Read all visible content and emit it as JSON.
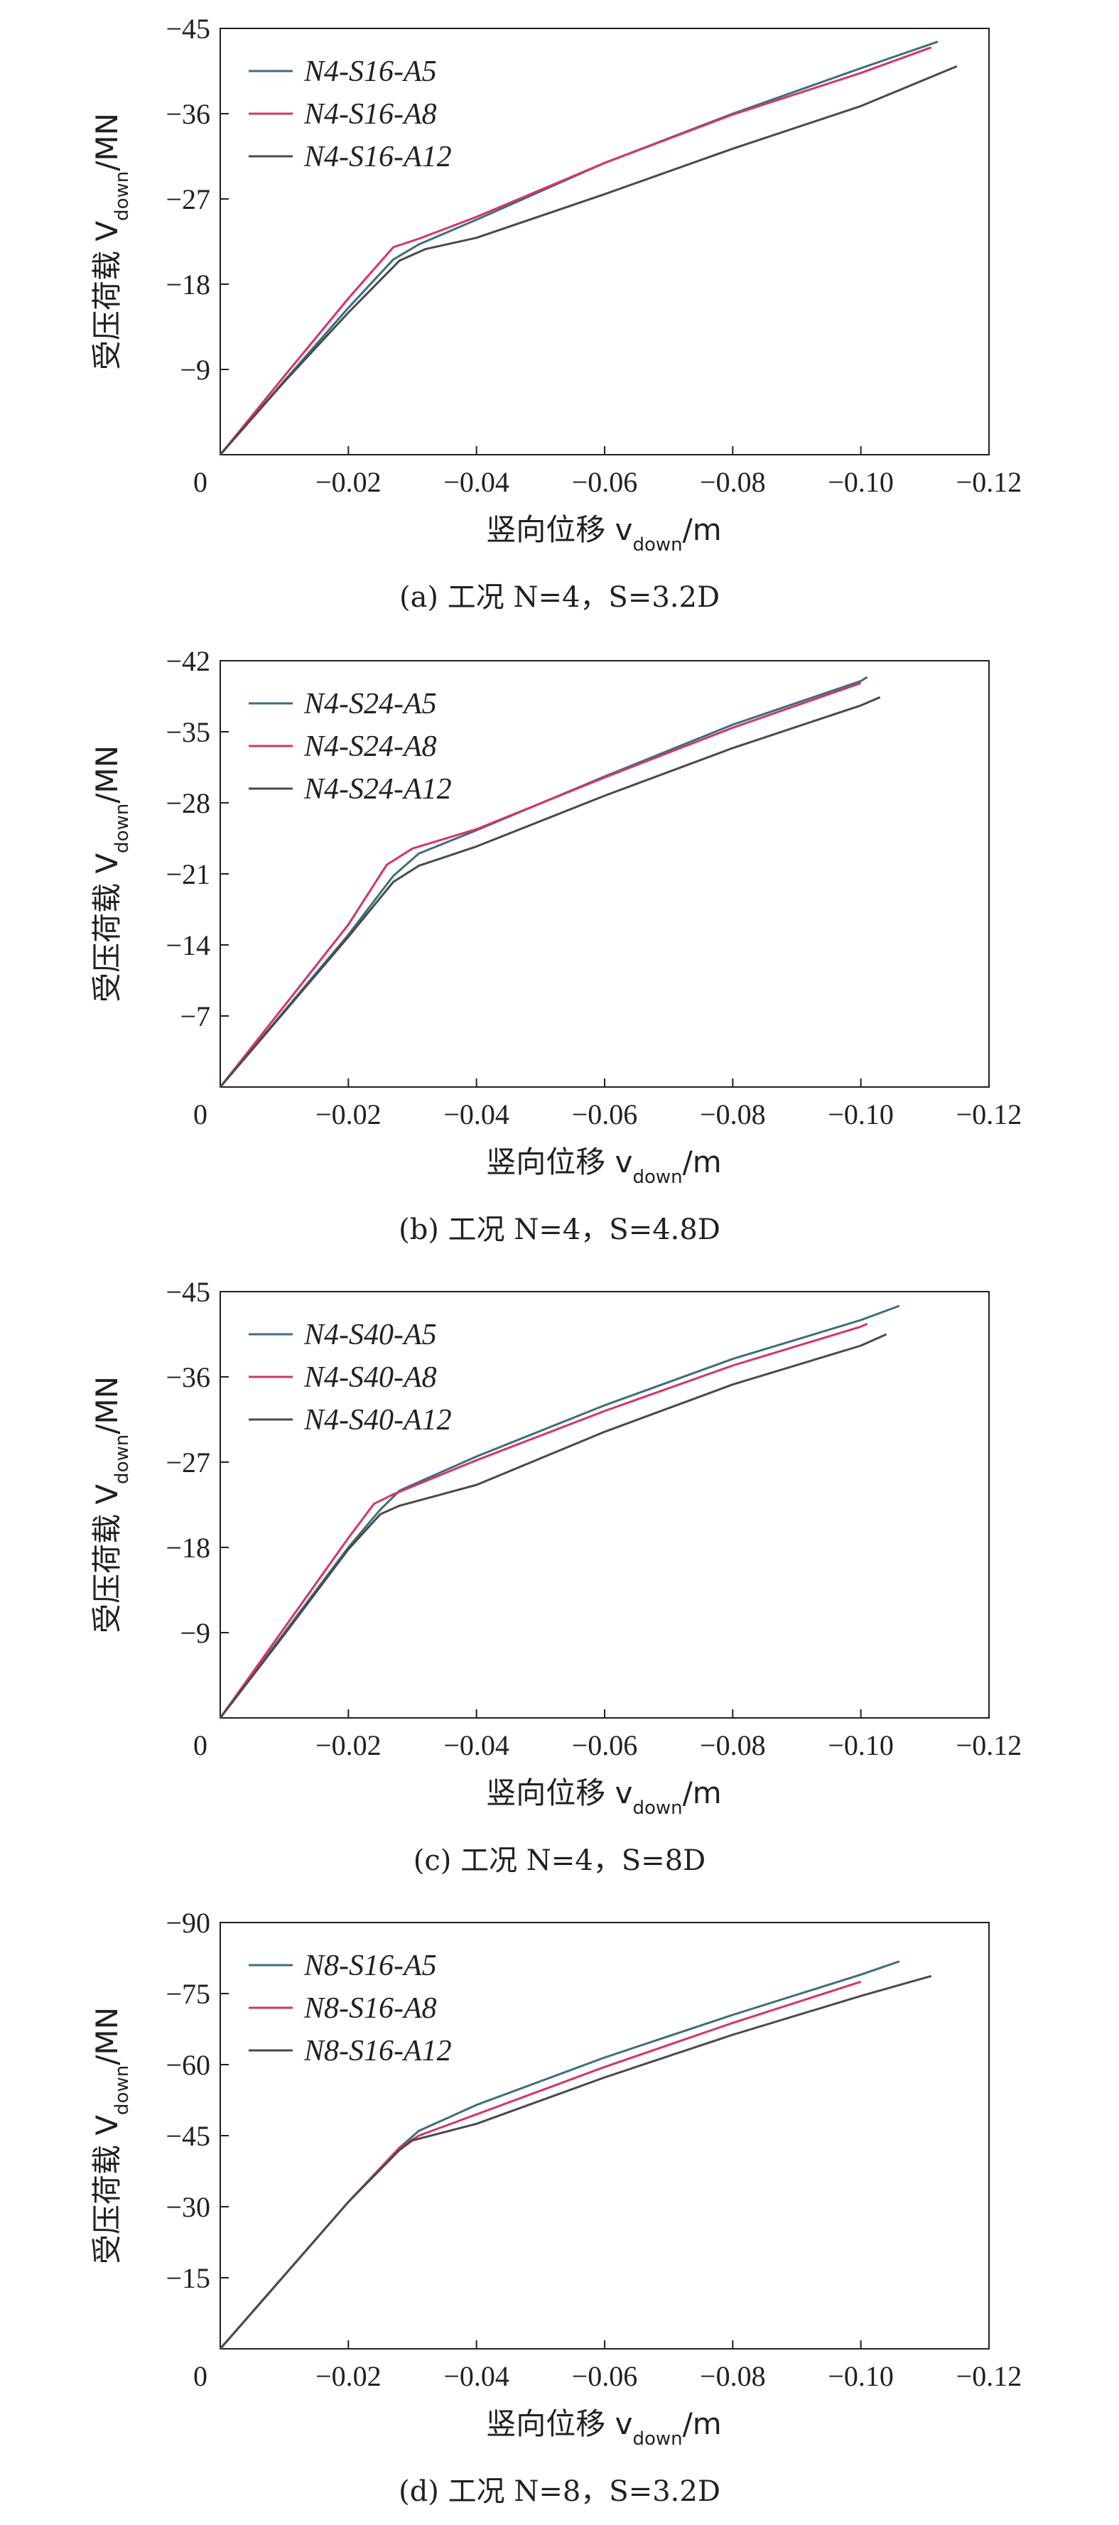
{
  "chart_data": [
    {
      "type": "line",
      "caption": "(a) 工况 N=4，S=3.2D",
      "ylabel": "受压荷载 Vdown/MN",
      "xlabel": "竖向位移 vdown/m",
      "xlim": [
        0,
        -0.12
      ],
      "ylim": [
        0,
        -45
      ],
      "xticks": [
        0,
        -0.02,
        -0.04,
        -0.06,
        -0.08,
        -0.1,
        -0.12
      ],
      "xtick_labels": [
        "0",
        "−0.02",
        "−0.04",
        "−0.06",
        "−0.08",
        "−0.10",
        "−0.12"
      ],
      "yticks": [
        -9,
        -18,
        -27,
        -36,
        -45
      ],
      "ytick_labels": [
        "−9",
        "−18",
        "−27",
        "−36",
        "−45"
      ],
      "legend_position": "top-left",
      "series": [
        {
          "name": "N4-S16-A5",
          "color": "#3b6f7f",
          "x": [
            0,
            -0.01,
            -0.02,
            -0.027,
            -0.031,
            -0.04,
            -0.06,
            -0.08,
            -0.1,
            -0.112
          ],
          "y": [
            0,
            -7.8,
            -15.5,
            -20.6,
            -22.2,
            -24.8,
            -30.8,
            -36.0,
            -40.8,
            -43.6
          ]
        },
        {
          "name": "N4-S16-A8",
          "color": "#d6336c",
          "x": [
            0,
            -0.01,
            -0.02,
            -0.027,
            -0.031,
            -0.04,
            -0.06,
            -0.08,
            -0.1,
            -0.111
          ],
          "y": [
            0,
            -8.3,
            -16.5,
            -21.9,
            -22.8,
            -25.1,
            -30.8,
            -35.9,
            -40.3,
            -43.0
          ]
        },
        {
          "name": "N4-S16-A12",
          "color": "#4a4a4a",
          "x": [
            0,
            -0.01,
            -0.02,
            -0.028,
            -0.032,
            -0.04,
            -0.06,
            -0.08,
            -0.1,
            -0.115
          ],
          "y": [
            0,
            -7.7,
            -15.0,
            -20.5,
            -21.7,
            -22.9,
            -27.5,
            -32.3,
            -36.8,
            -41.0
          ]
        }
      ]
    },
    {
      "type": "line",
      "caption": "(b) 工况 N=4，S=4.8D",
      "ylabel": "受压荷载 Vdown/MN",
      "xlabel": "竖向位移 vdown/m",
      "xlim": [
        0,
        -0.12
      ],
      "ylim": [
        0,
        -42
      ],
      "xticks": [
        0,
        -0.02,
        -0.04,
        -0.06,
        -0.08,
        -0.1,
        -0.12
      ],
      "xtick_labels": [
        "0",
        "−0.02",
        "−0.04",
        "−0.06",
        "−0.08",
        "−0.10",
        "−0.12"
      ],
      "yticks": [
        -7,
        -14,
        -21,
        -28,
        -35,
        -42
      ],
      "ytick_labels": [
        "−7",
        "−14",
        "−21",
        "−28",
        "−35",
        "−42"
      ],
      "legend_position": "top-left",
      "series": [
        {
          "name": "N4-S24-A5",
          "color": "#3b6f7f",
          "x": [
            0,
            -0.01,
            -0.02,
            -0.027,
            -0.031,
            -0.04,
            -0.06,
            -0.08,
            -0.1,
            -0.101
          ],
          "y": [
            0,
            -7.5,
            -15.0,
            -20.8,
            -23.0,
            -25.3,
            -30.6,
            -35.7,
            -40.0,
            -40.4
          ]
        },
        {
          "name": "N4-S24-A8",
          "color": "#d6336c",
          "x": [
            0,
            -0.01,
            -0.02,
            -0.026,
            -0.03,
            -0.04,
            -0.06,
            -0.08,
            -0.1
          ],
          "y": [
            0,
            -8.0,
            -16.0,
            -21.9,
            -23.5,
            -25.4,
            -30.5,
            -35.4,
            -39.8
          ]
        },
        {
          "name": "N4-S24-A12",
          "color": "#4a4a4a",
          "x": [
            0,
            -0.01,
            -0.02,
            -0.027,
            -0.031,
            -0.04,
            -0.06,
            -0.08,
            -0.1,
            -0.103
          ],
          "y": [
            0,
            -7.4,
            -14.8,
            -20.2,
            -21.8,
            -23.7,
            -28.7,
            -33.4,
            -37.6,
            -38.4
          ]
        }
      ]
    },
    {
      "type": "line",
      "caption": "(c) 工况 N=4，S=8D",
      "ylabel": "受压荷载 Vdown/MN",
      "xlabel": "竖向位移 vdown/m",
      "xlim": [
        0,
        -0.12
      ],
      "ylim": [
        0,
        -45
      ],
      "xticks": [
        0,
        -0.02,
        -0.04,
        -0.06,
        -0.08,
        -0.1,
        -0.12
      ],
      "xtick_labels": [
        "0",
        "−0.02",
        "−0.04",
        "−0.06",
        "−0.08",
        "−0.10",
        "−0.12"
      ],
      "yticks": [
        -9,
        -18,
        -27,
        -36,
        -45
      ],
      "ytick_labels": [
        "−9",
        "−18",
        "−27",
        "−36",
        "−45"
      ],
      "legend_position": "top-left",
      "series": [
        {
          "name": "N4-S40-A5",
          "color": "#3b6f7f",
          "x": [
            0,
            -0.01,
            -0.02,
            -0.025,
            -0.028,
            -0.04,
            -0.06,
            -0.08,
            -0.1,
            -0.106
          ],
          "y": [
            0,
            -9.0,
            -18.0,
            -22.0,
            -24.0,
            -27.6,
            -33.0,
            -37.9,
            -42.0,
            -43.5
          ]
        },
        {
          "name": "N4-S40-A8",
          "color": "#d6336c",
          "x": [
            0,
            -0.01,
            -0.02,
            -0.024,
            -0.027,
            -0.04,
            -0.06,
            -0.08,
            -0.1,
            -0.101
          ],
          "y": [
            0,
            -9.5,
            -19.0,
            -22.6,
            -23.6,
            -27.2,
            -32.4,
            -37.2,
            -41.3,
            -41.6
          ]
        },
        {
          "name": "N4-S40-A12",
          "color": "#4a4a4a",
          "x": [
            0,
            -0.01,
            -0.02,
            -0.025,
            -0.028,
            -0.04,
            -0.06,
            -0.08,
            -0.1,
            -0.104
          ],
          "y": [
            0,
            -8.8,
            -17.8,
            -21.5,
            -22.4,
            -24.6,
            -30.2,
            -35.2,
            -39.3,
            -40.5
          ]
        }
      ]
    },
    {
      "type": "line",
      "caption": "(d) 工况 N=8，S=3.2D",
      "ylabel": "受压荷载 Vdown/MN",
      "xlabel": "竖向位移 vdown/m",
      "xlim": [
        0,
        -0.12
      ],
      "ylim": [
        0,
        -90
      ],
      "xticks": [
        0,
        -0.02,
        -0.04,
        -0.06,
        -0.08,
        -0.1,
        -0.12
      ],
      "xtick_labels": [
        "0",
        "−0.02",
        "−0.04",
        "−0.06",
        "−0.08",
        "−0.10",
        "−0.12"
      ],
      "yticks": [
        -15,
        -30,
        -45,
        -60,
        -75,
        -90
      ],
      "ytick_labels": [
        "−15",
        "−30",
        "−45",
        "−60",
        "−75",
        "−90"
      ],
      "legend_position": "top-left",
      "series": [
        {
          "name": "N8-S16-A5",
          "color": "#3b6f7f",
          "x": [
            0,
            -0.01,
            -0.02,
            -0.028,
            -0.031,
            -0.04,
            -0.06,
            -0.08,
            -0.1,
            -0.106
          ],
          "y": [
            0,
            -15.5,
            -31.0,
            -42.5,
            -46.0,
            -51.5,
            -61.5,
            -70.5,
            -79.0,
            -81.8
          ]
        },
        {
          "name": "N8-S16-A8",
          "color": "#d6336c",
          "x": [
            0,
            -0.01,
            -0.02,
            -0.028,
            -0.031,
            -0.04,
            -0.06,
            -0.08,
            -0.1
          ],
          "y": [
            0,
            -15.5,
            -31.0,
            -42.5,
            -45.0,
            -49.5,
            -59.5,
            -68.8,
            -77.5
          ]
        },
        {
          "name": "N8-S16-A12",
          "color": "#4a4a4a",
          "x": [
            0,
            -0.01,
            -0.02,
            -0.028,
            -0.03,
            -0.04,
            -0.06,
            -0.08,
            -0.1,
            -0.111
          ],
          "y": [
            0,
            -15.5,
            -31.0,
            -42.0,
            -44.0,
            -47.5,
            -57.3,
            -66.3,
            -74.5,
            -78.7
          ]
        }
      ]
    }
  ]
}
